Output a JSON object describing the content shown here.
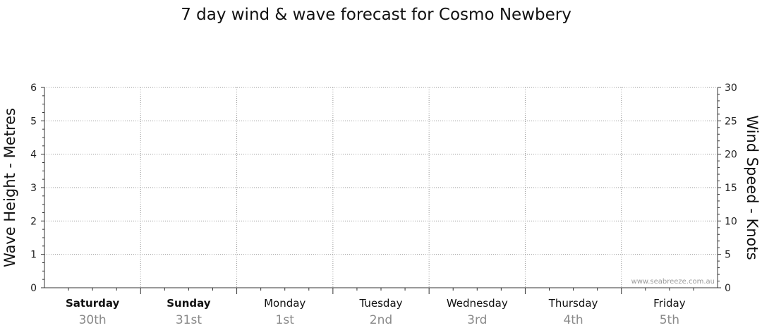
{
  "chart_data": {
    "type": "line",
    "title": "7 day wind & wave forecast for Cosmo Newbery",
    "ylabel_left": "Wave Height - Metres",
    "ylabel_right": "Wind Speed - Knots",
    "ylim_left": [
      0,
      6
    ],
    "ylim_right": [
      0,
      30
    ],
    "yticks_left": [
      "0",
      "1",
      "2",
      "3",
      "4",
      "5",
      "6"
    ],
    "yticks_right": [
      "0",
      "5",
      "10",
      "15",
      "20",
      "25",
      "30"
    ],
    "days": [
      {
        "name": "Saturday",
        "date": "30th",
        "bold": true
      },
      {
        "name": "Sunday",
        "date": "31st",
        "bold": true
      },
      {
        "name": "Monday",
        "date": "1st",
        "bold": false
      },
      {
        "name": "Tuesday",
        "date": "2nd",
        "bold": false
      },
      {
        "name": "Wednesday",
        "date": "3rd",
        "bold": false
      },
      {
        "name": "Thursday",
        "date": "4th",
        "bold": false
      },
      {
        "name": "Friday",
        "date": "5th",
        "bold": false
      }
    ],
    "series": [],
    "grid": true,
    "watermark": "www.seabreeze.com.au"
  }
}
